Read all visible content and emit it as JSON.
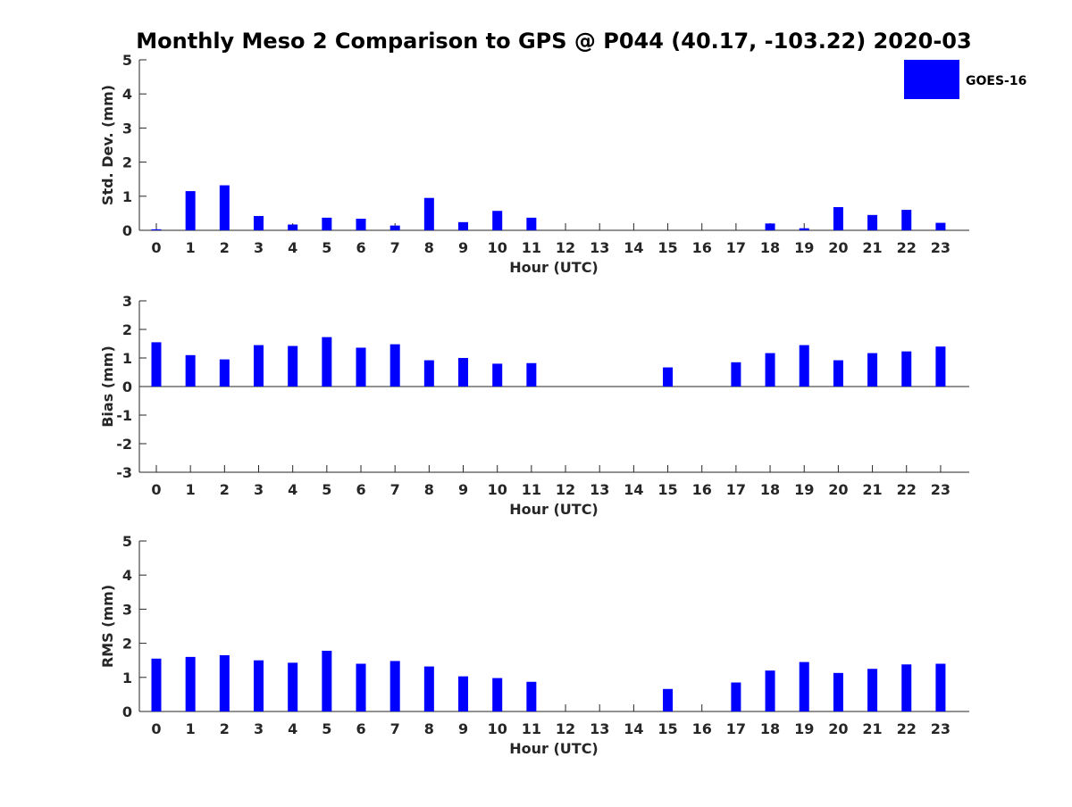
{
  "title": "Monthly Meso 2 Comparison to GPS @ P044 (40.17, -103.22) 2020-03",
  "legend": {
    "label": "GOES-16",
    "color": "#0000ff"
  },
  "chart_data": [
    {
      "type": "bar",
      "name": "std-dev",
      "ylabel": "Std. Dev. (mm)",
      "xlabel": "Hour (UTC)",
      "ylim": [
        0,
        5
      ],
      "yticks": [
        "0",
        "1",
        "2",
        "3",
        "4",
        "5"
      ],
      "categories": [
        "0",
        "1",
        "2",
        "3",
        "4",
        "5",
        "6",
        "7",
        "8",
        "9",
        "10",
        "11",
        "12",
        "13",
        "14",
        "15",
        "16",
        "17",
        "18",
        "19",
        "20",
        "21",
        "22",
        "23"
      ],
      "series": [
        {
          "name": "GOES-16",
          "values": [
            0.03,
            1.15,
            1.32,
            0.42,
            0.17,
            0.37,
            0.34,
            0.14,
            0.95,
            0.24,
            0.57,
            0.37,
            null,
            null,
            null,
            null,
            null,
            null,
            0.2,
            0.06,
            0.68,
            0.45,
            0.6,
            0.22
          ]
        }
      ]
    },
    {
      "type": "bar",
      "name": "bias",
      "ylabel": "Bias (mm)",
      "xlabel": "Hour (UTC)",
      "ylim": [
        -3,
        3
      ],
      "yticks": [
        "-3",
        "-2",
        "-1",
        "0",
        "1",
        "2",
        "3"
      ],
      "categories": [
        "0",
        "1",
        "2",
        "3",
        "4",
        "5",
        "6",
        "7",
        "8",
        "9",
        "10",
        "11",
        "12",
        "13",
        "14",
        "15",
        "16",
        "17",
        "18",
        "19",
        "20",
        "21",
        "22",
        "23"
      ],
      "series": [
        {
          "name": "GOES-16",
          "values": [
            1.55,
            1.1,
            0.95,
            1.45,
            1.42,
            1.73,
            1.36,
            1.48,
            0.92,
            1.0,
            0.8,
            0.82,
            null,
            null,
            null,
            0.67,
            null,
            0.85,
            1.17,
            1.45,
            0.92,
            1.17,
            1.23,
            1.4
          ]
        }
      ]
    },
    {
      "type": "bar",
      "name": "rms",
      "ylabel": "RMS (mm)",
      "xlabel": "Hour (UTC)",
      "ylim": [
        0,
        5
      ],
      "yticks": [
        "0",
        "1",
        "2",
        "3",
        "4",
        "5"
      ],
      "categories": [
        "0",
        "1",
        "2",
        "3",
        "4",
        "5",
        "6",
        "7",
        "8",
        "9",
        "10",
        "11",
        "12",
        "13",
        "14",
        "15",
        "16",
        "17",
        "18",
        "19",
        "20",
        "21",
        "22",
        "23"
      ],
      "series": [
        {
          "name": "GOES-16",
          "values": [
            1.55,
            1.6,
            1.65,
            1.5,
            1.43,
            1.78,
            1.4,
            1.48,
            1.32,
            1.03,
            0.98,
            0.87,
            null,
            null,
            null,
            0.66,
            null,
            0.85,
            1.2,
            1.45,
            1.13,
            1.25,
            1.38,
            1.4
          ]
        }
      ]
    }
  ]
}
